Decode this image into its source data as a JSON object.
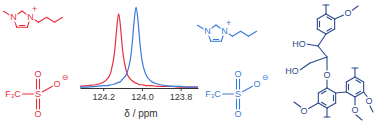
{
  "chart_data": {
    "type": "line",
    "x": [
      124.32,
      124.28,
      124.24,
      124.2,
      124.18,
      124.16,
      124.14,
      124.13,
      124.12,
      124.11,
      124.1,
      124.08,
      124.06,
      124.05,
      124.04,
      124.03,
      124.02,
      124.01,
      124.0,
      123.98,
      123.95,
      123.92,
      123.88,
      123.84,
      123.8,
      123.76,
      123.71
    ],
    "series": [
      {
        "color": "#e8303c",
        "values": [
          0.02,
          0.03,
          0.04,
          0.07,
          0.11,
          0.2,
          0.47,
          0.74,
          0.92,
          0.74,
          0.47,
          0.2,
          0.11,
          0.09,
          0.07,
          0.06,
          0.05,
          0.04,
          0.04,
          0.03,
          0.03,
          0.02,
          0.02,
          0.02,
          0.01,
          0.01,
          0.01
        ]
      },
      {
        "color": "#3a7ad8",
        "values": [
          0.01,
          0.01,
          0.02,
          0.03,
          0.03,
          0.04,
          0.05,
          0.06,
          0.07,
          0.08,
          0.11,
          0.17,
          0.35,
          0.55,
          0.83,
          1.0,
          0.83,
          0.55,
          0.35,
          0.17,
          0.08,
          0.05,
          0.03,
          0.02,
          0.02,
          0.01,
          0.01
        ]
      }
    ],
    "xlim": [
      124.32,
      123.71
    ],
    "xticks": [
      124.2,
      {
        "value": 124,
        "label": "124.0"
      },
      123.8
    ],
    "ylim": [
      0,
      1.05
    ],
    "xlabel": "δ / ppm",
    "tick_labels": "x"
  },
  "structures": [
    {
      "color": "#e8303c",
      "atoms": [
        "N",
        "N",
        "+"
      ]
    },
    {
      "color": "#e8303c",
      "atoms": [
        "F₃C",
        "S",
        "O",
        "O",
        "O",
        "⊖"
      ]
    },
    {
      "color": "#3a7ad8",
      "atoms": [
        "N",
        "N",
        "+"
      ]
    },
    {
      "color": "#3a7ad8",
      "atoms": [
        "F₃C",
        "S",
        "O",
        "O",
        "O",
        "⊖"
      ]
    },
    {
      "color": "#2b4a8c",
      "atoms": [
        "O",
        "HO",
        "O",
        "HO",
        "O",
        "O",
        "O"
      ]
    }
  ]
}
